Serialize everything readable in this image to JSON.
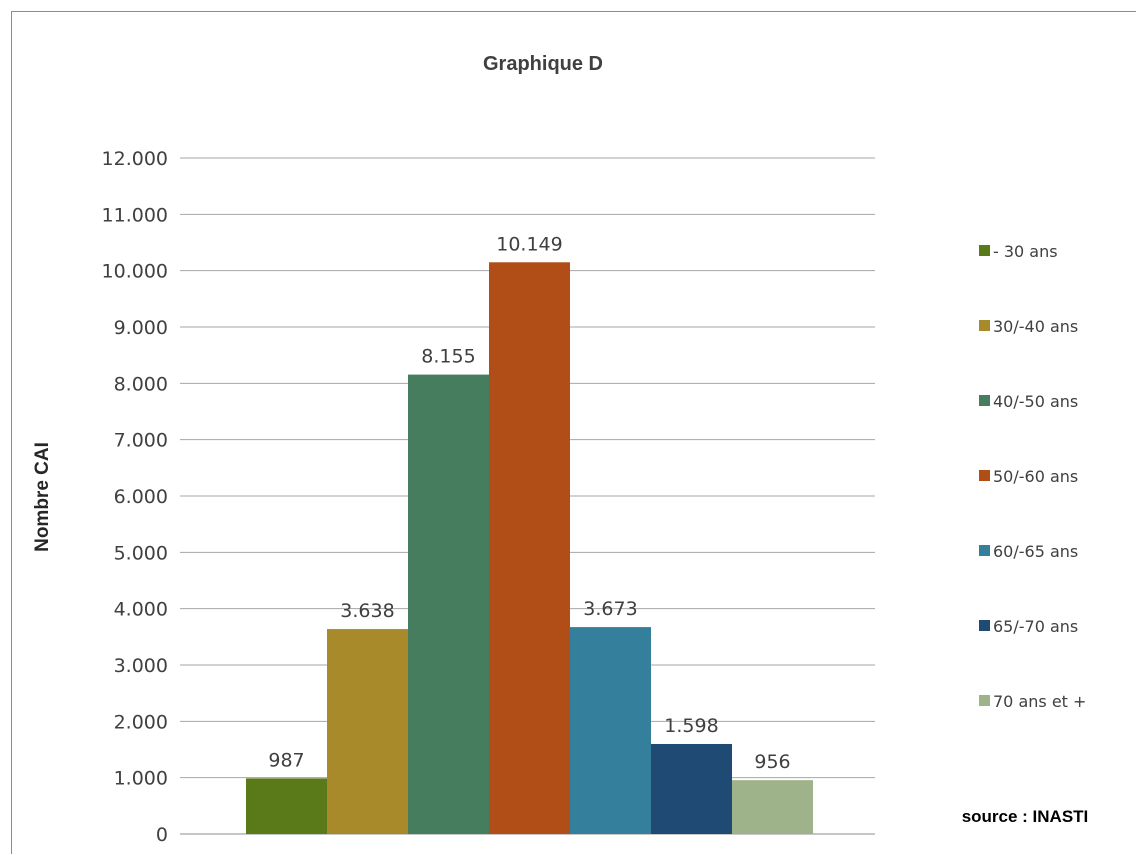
{
  "chart_data": {
    "type": "bar",
    "title": "Graphique D",
    "ylabel": "Nombre CAI",
    "xlabel": "",
    "ylim": [
      0,
      12000
    ],
    "yticks": [
      0,
      1000,
      2000,
      3000,
      4000,
      5000,
      6000,
      7000,
      8000,
      9000,
      10000,
      11000,
      12000
    ],
    "ytick_labels": [
      "0",
      "1.000",
      "2.000",
      "3.000",
      "4.000",
      "5.000",
      "6.000",
      "7.000",
      "8.000",
      "9.000",
      "10.000",
      "11.000",
      "12.000"
    ],
    "grid": true,
    "legend_position": "right",
    "series": [
      {
        "name": "- 30 ans",
        "value": 987,
        "label": "987",
        "color": "#5a7a1a"
      },
      {
        "name": "30/-40 ans",
        "value": 3638,
        "label": "3.638",
        "color": "#a88a2a"
      },
      {
        "name": "40/-50 ans",
        "value": 8155,
        "label": "8.155",
        "color": "#467d5e"
      },
      {
        "name": "50/-60 ans",
        "value": 10149,
        "label": "10.149",
        "color": "#b14e17"
      },
      {
        "name": "60/-65 ans",
        "value": 3673,
        "label": "3.673",
        "color": "#347f9b"
      },
      {
        "name": "65/-70 ans",
        "value": 1598,
        "label": "1.598",
        "color": "#1f4a73"
      },
      {
        "name": "70 ans et +",
        "value": 956,
        "label": "956",
        "color": "#9fb38a"
      }
    ],
    "source": "source : INASTI"
  }
}
